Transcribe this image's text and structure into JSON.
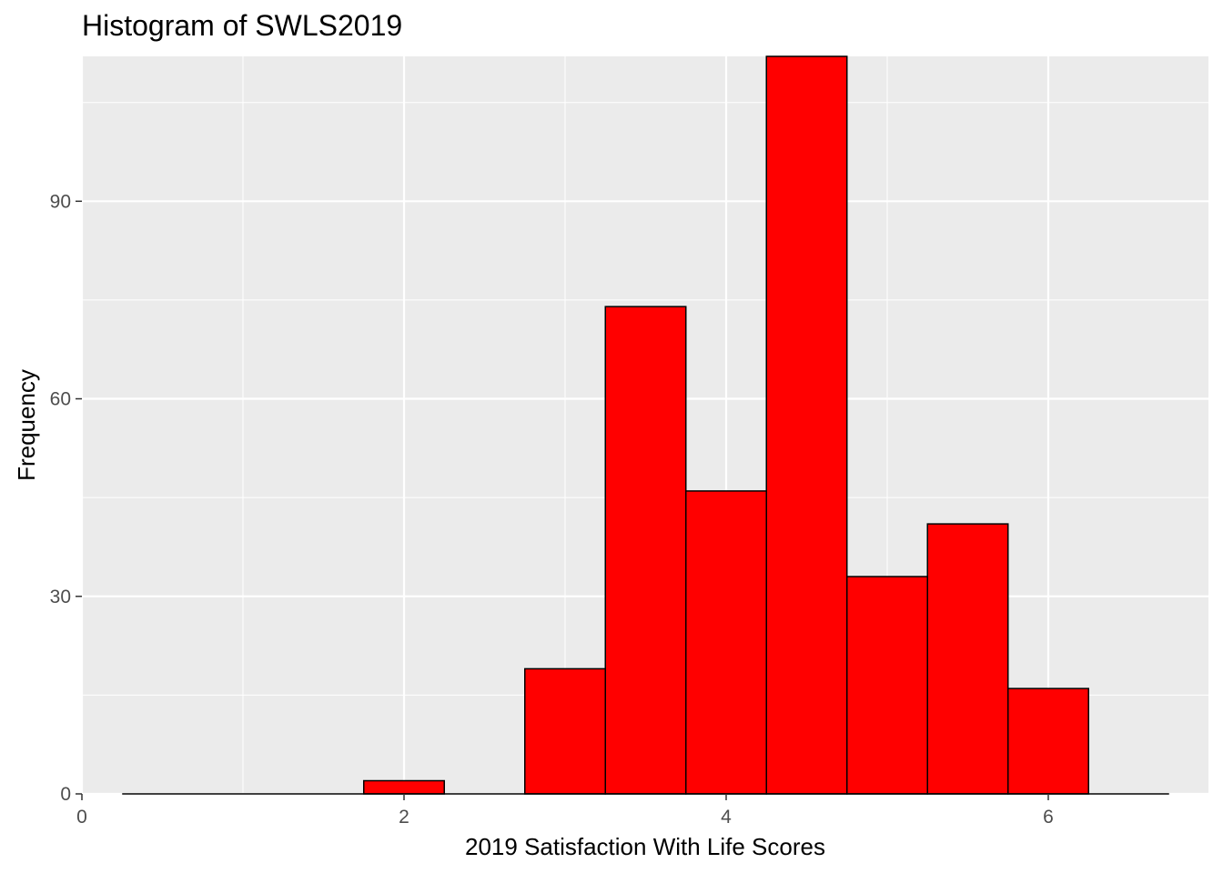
{
  "chart_data": {
    "type": "bar",
    "title": "Histogram of SWLS2019",
    "xlabel": "2019 Satisfaction With Life Scores",
    "ylabel": "Frequency",
    "bin_width": 0.5,
    "bins": [
      {
        "x0": 0.25,
        "x1": 0.75,
        "count": 0
      },
      {
        "x0": 0.75,
        "x1": 1.25,
        "count": 0
      },
      {
        "x0": 1.25,
        "x1": 1.75,
        "count": 0
      },
      {
        "x0": 1.75,
        "x1": 2.25,
        "count": 2
      },
      {
        "x0": 2.25,
        "x1": 2.75,
        "count": 0
      },
      {
        "x0": 2.75,
        "x1": 3.25,
        "count": 19
      },
      {
        "x0": 3.25,
        "x1": 3.75,
        "count": 74
      },
      {
        "x0": 3.75,
        "x1": 4.25,
        "count": 46
      },
      {
        "x0": 4.25,
        "x1": 4.75,
        "count": 112
      },
      {
        "x0": 4.75,
        "x1": 5.25,
        "count": 33
      },
      {
        "x0": 5.25,
        "x1": 5.75,
        "count": 41
      },
      {
        "x0": 5.75,
        "x1": 6.25,
        "count": 16
      },
      {
        "x0": 6.25,
        "x1": 6.75,
        "count": 0
      }
    ],
    "xlim": [
      0,
      6.75
    ],
    "ylim": [
      0,
      112
    ],
    "x_ticks": [
      "0",
      "2",
      "4",
      "6"
    ],
    "y_ticks": [
      "0",
      "30",
      "60",
      "90"
    ],
    "grid": true,
    "bar_fill": "#ff0000",
    "bar_outline": "#000000",
    "panel_background": "#ebebeb",
    "gridline_color": "#ffffff"
  }
}
